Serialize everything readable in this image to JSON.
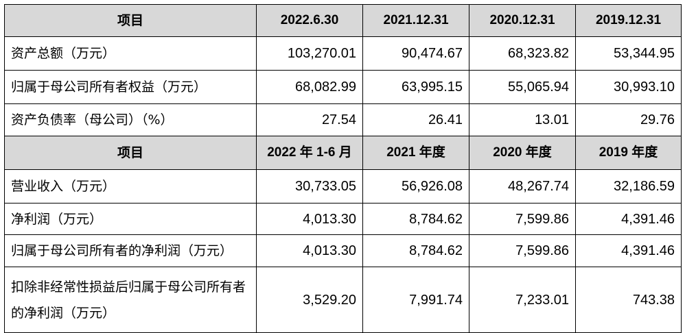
{
  "table": {
    "header1": [
      "项目",
      "2022.6.30",
      "2021.12.31",
      "2020.12.31",
      "2019.12.31"
    ],
    "section1_rows": [
      {
        "label": "资产总额（万元）",
        "values": [
          "103,270.01",
          "90,474.67",
          "68,323.82",
          "53,344.95"
        ]
      },
      {
        "label": "归属于母公司所有者权益（万元）",
        "values": [
          "68,082.99",
          "63,995.15",
          "55,065.94",
          "30,993.10"
        ]
      },
      {
        "label": "资产负债率（母公司）（%）",
        "values": [
          "27.54",
          "26.41",
          "13.01",
          "29.76"
        ]
      }
    ],
    "header2": [
      "项目",
      "2022 年 1-6 月",
      "2021 年度",
      "2020 年度",
      "2019 年度"
    ],
    "section2_rows": [
      {
        "label": "营业收入（万元）",
        "values": [
          "30,733.05",
          "56,926.08",
          "48,267.74",
          "32,186.59"
        ]
      },
      {
        "label": "净利润（万元）",
        "values": [
          "4,013.30",
          "8,784.62",
          "7,599.86",
          "4,391.46"
        ]
      },
      {
        "label": "归属于母公司所有者的净利润（万元）",
        "values": [
          "4,013.30",
          "8,784.62",
          "7,599.86",
          "4,391.46"
        ]
      },
      {
        "label": "扣除非经常性损益后归属于母公司所有者的净利润（万元）",
        "values": [
          "3,529.20",
          "7,991.74",
          "7,233.01",
          "743.38"
        ]
      }
    ]
  }
}
